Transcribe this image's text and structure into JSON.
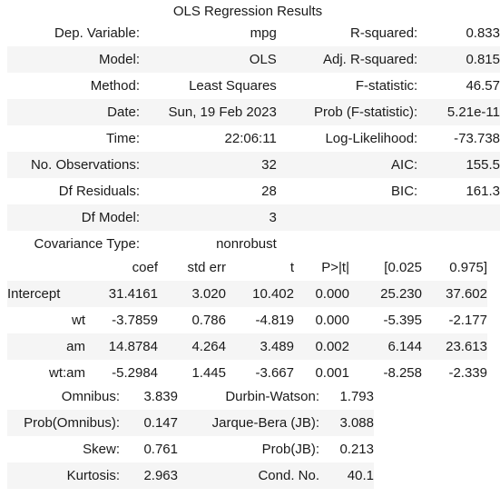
{
  "title": "OLS Regression Results",
  "summary": {
    "rows": [
      {
        "l1": "Dep. Variable:",
        "v1": "mpg",
        "l2": "R-squared:",
        "v2": "0.833"
      },
      {
        "l1": "Model:",
        "v1": "OLS",
        "l2": "Adj. R-squared:",
        "v2": "0.815"
      },
      {
        "l1": "Method:",
        "v1": "Least Squares",
        "l2": "F-statistic:",
        "v2": "46.57"
      },
      {
        "l1": "Date:",
        "v1": "Sun, 19 Feb 2023",
        "l2": "Prob (F-statistic):",
        "v2": "5.21e-11"
      },
      {
        "l1": "Time:",
        "v1": "22:06:11",
        "l2": "Log-Likelihood:",
        "v2": "-73.738"
      },
      {
        "l1": "No. Observations:",
        "v1": "32",
        "l2": "AIC:",
        "v2": "155.5"
      },
      {
        "l1": "Df Residuals:",
        "v1": "28",
        "l2": "BIC:",
        "v2": "161.3"
      },
      {
        "l1": "Df Model:",
        "v1": "3",
        "l2": "",
        "v2": ""
      },
      {
        "l1": "Covariance Type:",
        "v1": "nonrobust",
        "l2": "",
        "v2": ""
      }
    ]
  },
  "coefficients": {
    "headers": [
      "",
      "coef",
      "std err",
      "t",
      "P>|t|",
      "[0.025",
      "0.975]"
    ],
    "rows": [
      [
        "Intercept",
        "31.4161",
        "3.020",
        "10.402",
        "0.000",
        "25.230",
        "37.602"
      ],
      [
        "wt",
        "-3.7859",
        "0.786",
        "-4.819",
        "0.000",
        "-5.395",
        "-2.177"
      ],
      [
        "am",
        "14.8784",
        "4.264",
        "3.489",
        "0.002",
        "6.144",
        "23.613"
      ],
      [
        "wt:am",
        "-5.2984",
        "1.445",
        "-3.667",
        "0.001",
        "-8.258",
        "-2.339"
      ]
    ]
  },
  "diagnostics": {
    "rows": [
      {
        "l1": "Omnibus:",
        "v1": "3.839",
        "l2": "Durbin-Watson:",
        "v2": "1.793"
      },
      {
        "l1": "Prob(Omnibus):",
        "v1": "0.147",
        "l2": "Jarque-Bera (JB):",
        "v2": "3.088"
      },
      {
        "l1": "Skew:",
        "v1": "0.761",
        "l2": "Prob(JB):",
        "v2": "0.213"
      },
      {
        "l1": "Kurtosis:",
        "v1": "2.963",
        "l2": "Cond. No.",
        "v2": "40.1"
      }
    ]
  }
}
